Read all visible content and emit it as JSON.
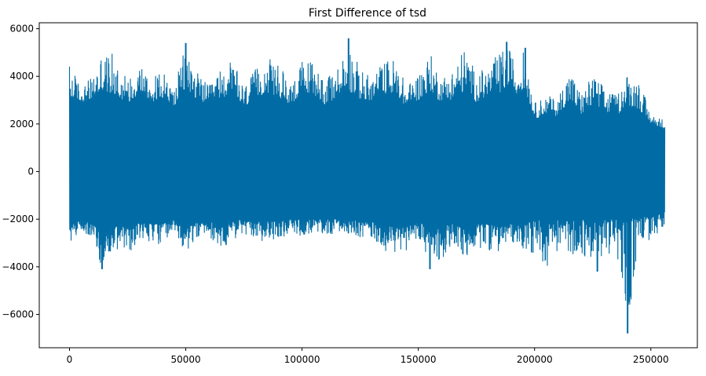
{
  "chart_data": {
    "type": "line",
    "title": "First Difference of tsd",
    "xlabel": "",
    "ylabel": "",
    "xlim": [
      -13000,
      270000
    ],
    "ylim": [
      -7400,
      6250
    ],
    "x_range": [
      0,
      256000
    ],
    "x_ticks": [
      0,
      50000,
      100000,
      150000,
      200000,
      250000
    ],
    "x_tick_labels": [
      "0",
      "50000",
      "100000",
      "150000",
      "200000",
      "250000"
    ],
    "y_ticks": [
      -6000,
      -4000,
      -2000,
      0,
      2000,
      4000,
      6000
    ],
    "y_tick_labels": [
      "−6000",
      "−4000",
      "−2000",
      "0",
      "2000",
      "4000",
      "6000"
    ],
    "grid": false,
    "series": [
      {
        "color": "#006ba4",
        "envelope": {
          "x": [
            0,
            5000,
            10000,
            14000,
            20000,
            25000,
            30000,
            35000,
            40000,
            45000,
            50000,
            55000,
            60000,
            65000,
            70000,
            75000,
            80000,
            85000,
            90000,
            95000,
            100000,
            105000,
            110000,
            115000,
            120000,
            125000,
            130000,
            135000,
            140000,
            145000,
            150000,
            155000,
            160000,
            165000,
            170000,
            175000,
            180000,
            185000,
            188000,
            192000,
            196000,
            200000,
            205000,
            210000,
            215000,
            220000,
            225000,
            230000,
            235000,
            240000,
            245000,
            250000,
            256000
          ],
          "upper": [
            4600,
            3600,
            4000,
            5100,
            4900,
            3900,
            4800,
            3900,
            4300,
            3500,
            5400,
            4200,
            3600,
            4300,
            4700,
            3600,
            4300,
            4800,
            4500,
            3800,
            4700,
            4800,
            3800,
            4400,
            5600,
            4300,
            4000,
            4700,
            4800,
            3600,
            4200,
            5000,
            4000,
            4400,
            5300,
            4100,
            4500,
            5000,
            5400,
            4600,
            5200,
            2900,
            3200,
            3100,
            4400,
            3300,
            4100,
            3600,
            3200,
            4200,
            3900,
            2400,
            2200
          ],
          "lower": [
            -3000,
            -2500,
            -2800,
            -4100,
            -3300,
            -3600,
            -2800,
            -3000,
            -3100,
            -2600,
            -3500,
            -2800,
            -2700,
            -3300,
            -2900,
            -2700,
            -3000,
            -2900,
            -2800,
            -2700,
            -2700,
            -2700,
            -2700,
            -2600,
            -2600,
            -2800,
            -2800,
            -3300,
            -3500,
            -3300,
            -2700,
            -4100,
            -3700,
            -3100,
            -3800,
            -3200,
            -3300,
            -3400,
            -3100,
            -3000,
            -3300,
            -3600,
            -4100,
            -3300,
            -3600,
            -3400,
            -4200,
            -3400,
            -3600,
            -6800,
            -2800,
            -3000,
            -2400
          ]
        },
        "body": {
          "upper": [
            3000,
            2900,
            3000,
            3400,
            3200,
            2800,
            3300,
            2900,
            3100,
            2700,
            3500,
            3000,
            2800,
            3100,
            3200,
            2700,
            3100,
            3300,
            3100,
            2800,
            3200,
            3200,
            2800,
            3000,
            3400,
            3000,
            2900,
            3200,
            3200,
            2700,
            3000,
            3300,
            2900,
            3000,
            3400,
            2900,
            3100,
            3300,
            3500,
            3200,
            3400,
            2200,
            2400,
            2300,
            3000,
            2400,
            2800,
            2500,
            2300,
            2800,
            2600,
            2000,
            1800
          ],
          "lower": [
            -2300,
            -2000,
            -2200,
            -2500,
            -2300,
            -2300,
            -2100,
            -2200,
            -2200,
            -2000,
            -2300,
            -2100,
            -2100,
            -2200,
            -2100,
            -2000,
            -2100,
            -2100,
            -2100,
            -2000,
            -2000,
            -2000,
            -2000,
            -2000,
            -2000,
            -2100,
            -2100,
            -2300,
            -2300,
            -2300,
            -2100,
            -2400,
            -2300,
            -2200,
            -2400,
            -2200,
            -2200,
            -2300,
            -2200,
            -2200,
            -2200,
            -2000,
            -2100,
            -2000,
            -2100,
            -2000,
            -2100,
            -2000,
            -2000,
            -2000,
            -1900,
            -1900,
            -1700
          ]
        },
        "outliers": [
          {
            "x": 240000,
            "y": -6800
          },
          {
            "x": 241000,
            "y": -4200
          },
          {
            "x": 14000,
            "y": -4100
          },
          {
            "x": 155000,
            "y": -4100
          },
          {
            "x": 227000,
            "y": -4200
          },
          {
            "x": 120000,
            "y": 5600
          },
          {
            "x": 50000,
            "y": 5400
          },
          {
            "x": 188000,
            "y": 5450
          },
          {
            "x": 196000,
            "y": 5200
          }
        ]
      }
    ]
  }
}
